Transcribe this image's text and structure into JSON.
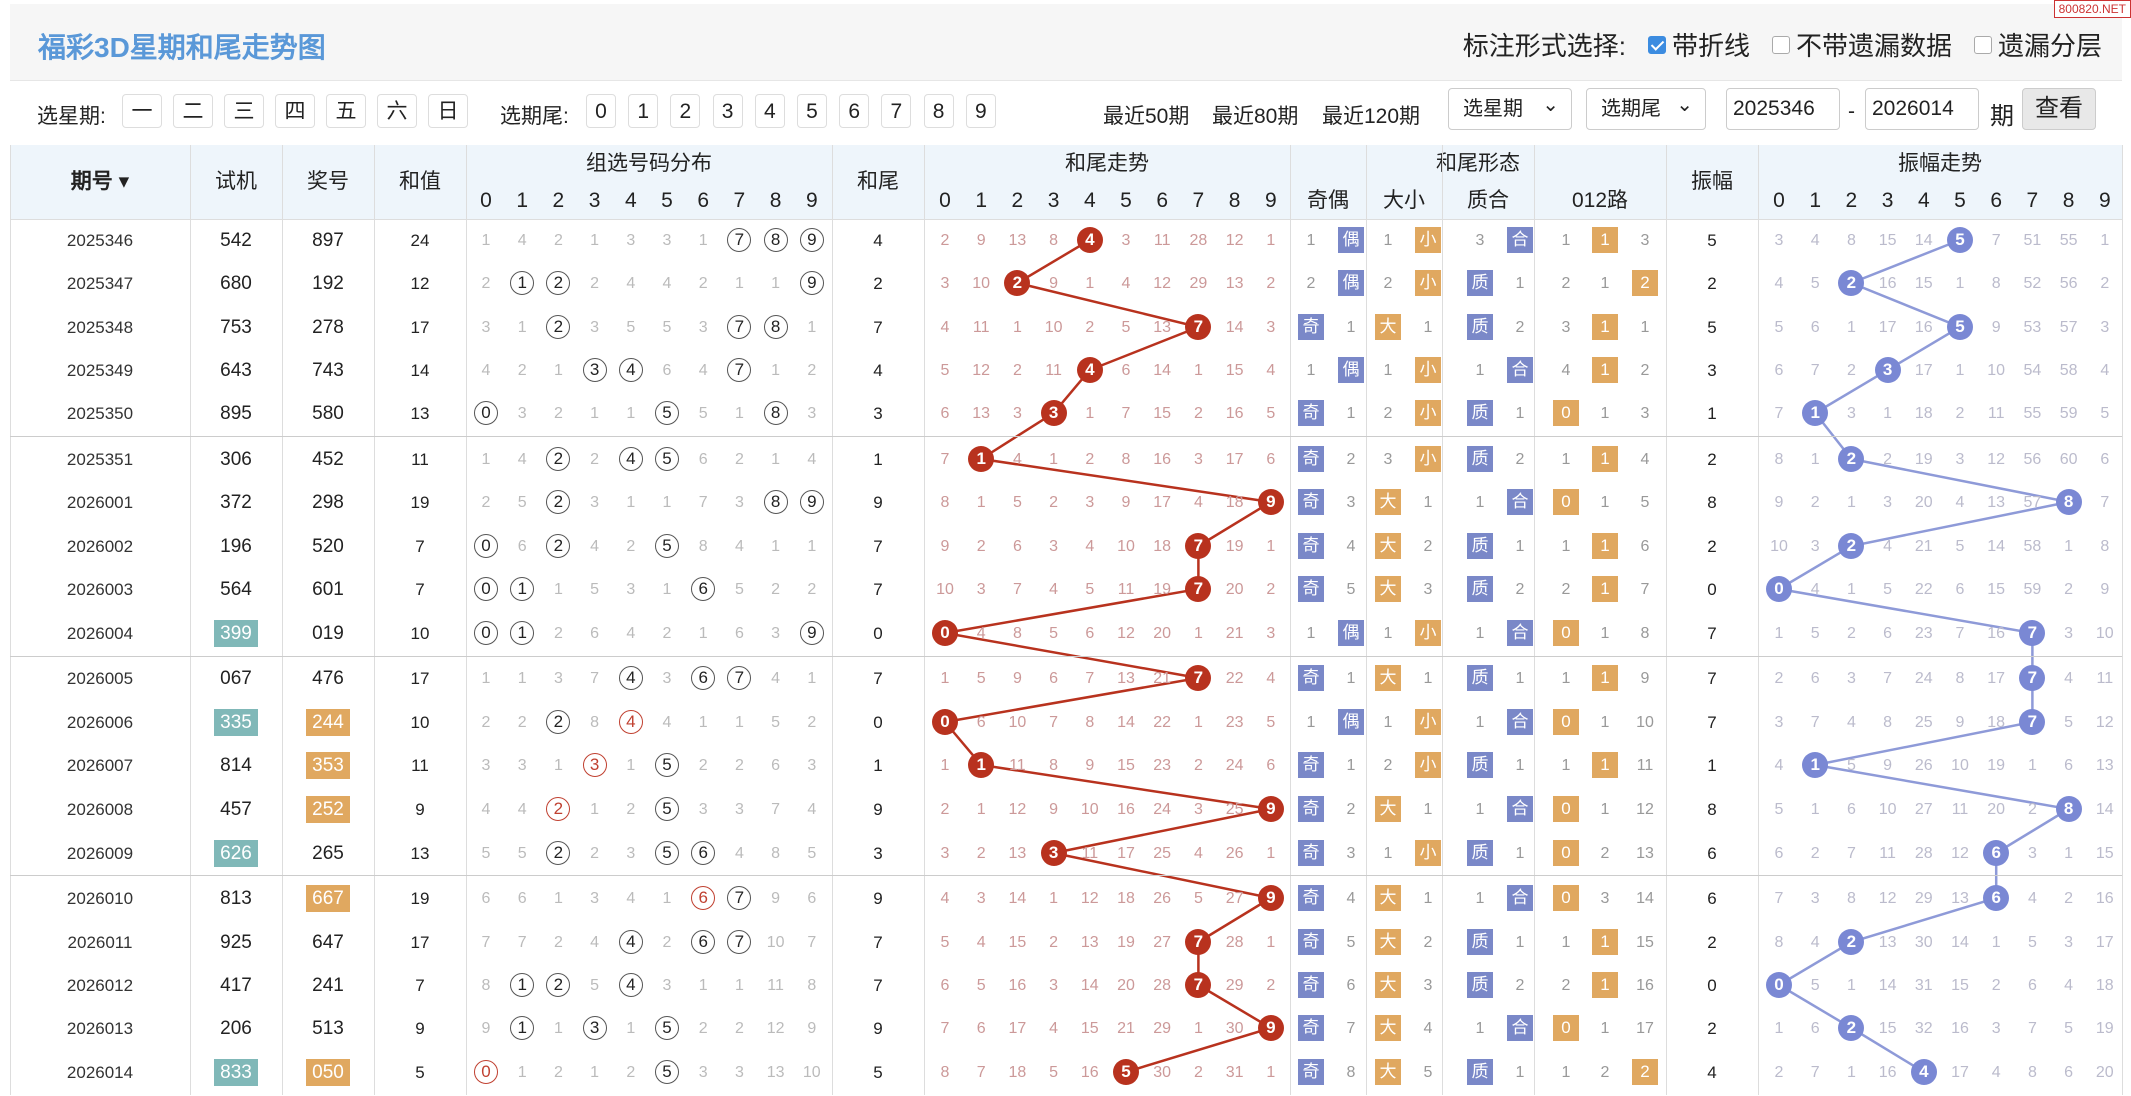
{
  "title": "福彩3D星期和尾走势图",
  "site_badge": "800820.NET",
  "options": {
    "label": "标注形式选择:",
    "items": [
      {
        "label": "带折线",
        "checked": true
      },
      {
        "label": "不带遗漏数据",
        "checked": false
      },
      {
        "label": "遗漏分层",
        "checked": false
      }
    ]
  },
  "filter": {
    "weekday_label": "选星期:",
    "weekdays": [
      "一",
      "二",
      "三",
      "四",
      "五",
      "六",
      "日"
    ],
    "tail_label": "选期尾:",
    "tails": [
      "0",
      "1",
      "2",
      "3",
      "4",
      "5",
      "6",
      "7",
      "8",
      "9"
    ],
    "recent": [
      "最近50期",
      "最近80期",
      "最近120期"
    ],
    "weekday_select": "选星期",
    "tail_select": "选期尾",
    "from": "2025346",
    "sep": "-",
    "to": "2026014",
    "period_label": "期",
    "query": "查看"
  },
  "headers": {
    "issue": "期号",
    "trial": "试机",
    "draw": "奖号",
    "sum": "和值",
    "dist": "组选号码分布",
    "tail": "和尾",
    "trend": "和尾走势",
    "form": "和尾形态",
    "odd_even": "奇偶",
    "big_small": "大小",
    "prime": "质合",
    "route": "012路",
    "amp": "振幅",
    "amp_trend": "振幅走势",
    "digits": [
      "0",
      "1",
      "2",
      "3",
      "4",
      "5",
      "6",
      "7",
      "8",
      "9"
    ]
  },
  "colors": {
    "title": "#5a98d8",
    "red": "#b8321e",
    "blue": "#7a88d4",
    "orange": "#e0a860",
    "teal": "#80b8b8"
  },
  "rows": [
    {
      "issue": "2025346",
      "trial": "542",
      "draw": "897",
      "sum": "24",
      "tail": "4",
      "amp": "5",
      "dist": [
        "1",
        "4",
        "2",
        "1",
        "3",
        "3",
        "1",
        "7",
        "8",
        "9"
      ],
      "trend": [
        "2",
        "9",
        "13",
        "8",
        "4",
        "3",
        "11",
        "28",
        "12",
        "1"
      ],
      "form": [
        "1",
        "偶",
        "1",
        "小",
        "3",
        "合",
        "1",
        "1",
        "3"
      ],
      "ampt": [
        "3",
        "4",
        "8",
        "15",
        "14",
        "5",
        "7",
        "51",
        "55",
        "1"
      ]
    },
    {
      "issue": "2025347",
      "trial": "680",
      "draw": "192",
      "sum": "12",
      "tail": "2",
      "amp": "2",
      "dist": [
        "2",
        "1",
        "2",
        "2",
        "4",
        "4",
        "2",
        "1",
        "1",
        "9"
      ],
      "trend": [
        "3",
        "10",
        "2",
        "9",
        "1",
        "4",
        "12",
        "29",
        "13",
        "2"
      ],
      "form": [
        "2",
        "偶",
        "2",
        "小",
        "质",
        "1",
        "2",
        "1",
        "2"
      ],
      "ampt": [
        "4",
        "5",
        "2",
        "16",
        "15",
        "1",
        "8",
        "52",
        "56",
        "2"
      ]
    },
    {
      "issue": "2025348",
      "trial": "753",
      "draw": "278",
      "sum": "17",
      "tail": "7",
      "amp": "5",
      "dist": [
        "3",
        "1",
        "2",
        "3",
        "5",
        "5",
        "3",
        "7",
        "8",
        "1"
      ],
      "trend": [
        "4",
        "11",
        "1",
        "10",
        "2",
        "5",
        "13",
        "7",
        "14",
        "3"
      ],
      "form": [
        "奇",
        "1",
        "大",
        "1",
        "质",
        "2",
        "3",
        "1",
        "1"
      ],
      "ampt": [
        "5",
        "6",
        "1",
        "17",
        "16",
        "5",
        "9",
        "53",
        "57",
        "3"
      ]
    },
    {
      "issue": "2025349",
      "trial": "643",
      "draw": "743",
      "sum": "14",
      "tail": "4",
      "amp": "3",
      "dist": [
        "4",
        "2",
        "1",
        "3",
        "4",
        "6",
        "4",
        "7",
        "1",
        "2"
      ],
      "trend": [
        "5",
        "12",
        "2",
        "11",
        "4",
        "6",
        "14",
        "1",
        "15",
        "4"
      ],
      "form": [
        "1",
        "偶",
        "1",
        "小",
        "1",
        "合",
        "4",
        "1",
        "2"
      ],
      "ampt": [
        "6",
        "7",
        "2",
        "3",
        "17",
        "1",
        "10",
        "54",
        "58",
        "4"
      ]
    },
    {
      "issue": "2025350",
      "trial": "895",
      "draw": "580",
      "sum": "13",
      "tail": "3",
      "amp": "1",
      "dist": [
        "0",
        "3",
        "2",
        "1",
        "1",
        "5",
        "5",
        "1",
        "8",
        "3"
      ],
      "trend": [
        "6",
        "13",
        "3",
        "3",
        "1",
        "7",
        "15",
        "2",
        "16",
        "5"
      ],
      "form": [
        "奇",
        "1",
        "2",
        "小",
        "质",
        "1",
        "0",
        "1",
        "3"
      ],
      "ampt": [
        "7",
        "1",
        "3",
        "1",
        "18",
        "2",
        "11",
        "55",
        "59",
        "5"
      ]
    },
    {
      "issue": "2025351",
      "trial": "306",
      "draw": "452",
      "sum": "11",
      "tail": "1",
      "amp": "2",
      "dist": [
        "1",
        "4",
        "2",
        "2",
        "4",
        "5",
        "6",
        "2",
        "1",
        "4"
      ],
      "trend": [
        "7",
        "1",
        "4",
        "1",
        "2",
        "8",
        "16",
        "3",
        "17",
        "6"
      ],
      "form": [
        "奇",
        "2",
        "3",
        "小",
        "质",
        "2",
        "1",
        "1",
        "4"
      ],
      "ampt": [
        "8",
        "1",
        "2",
        "2",
        "19",
        "3",
        "12",
        "56",
        "60",
        "6"
      ]
    },
    {
      "issue": "2026001",
      "trial": "372",
      "draw": "298",
      "sum": "19",
      "tail": "9",
      "amp": "8",
      "dist": [
        "2",
        "5",
        "2",
        "3",
        "1",
        "1",
        "7",
        "3",
        "8",
        "9"
      ],
      "trend": [
        "8",
        "1",
        "5",
        "2",
        "3",
        "9",
        "17",
        "4",
        "18",
        "9"
      ],
      "form": [
        "奇",
        "3",
        "大",
        "1",
        "1",
        "合",
        "0",
        "1",
        "5"
      ],
      "ampt": [
        "9",
        "2",
        "1",
        "3",
        "20",
        "4",
        "13",
        "57",
        "8",
        "7"
      ]
    },
    {
      "issue": "2026002",
      "trial": "196",
      "draw": "520",
      "sum": "7",
      "tail": "7",
      "amp": "2",
      "dist": [
        "0",
        "6",
        "2",
        "4",
        "2",
        "5",
        "8",
        "4",
        "1",
        "1"
      ],
      "trend": [
        "9",
        "2",
        "6",
        "3",
        "4",
        "10",
        "18",
        "7",
        "19",
        "1"
      ],
      "form": [
        "奇",
        "4",
        "大",
        "2",
        "质",
        "1",
        "1",
        "1",
        "6"
      ],
      "ampt": [
        "10",
        "3",
        "2",
        "4",
        "21",
        "5",
        "14",
        "58",
        "1",
        "8"
      ]
    },
    {
      "issue": "2026003",
      "trial": "564",
      "draw": "601",
      "sum": "7",
      "tail": "7",
      "amp": "0",
      "dist": [
        "0",
        "1",
        "1",
        "5",
        "3",
        "1",
        "6",
        "5",
        "2",
        "2"
      ],
      "trend": [
        "10",
        "3",
        "7",
        "4",
        "5",
        "11",
        "19",
        "7",
        "20",
        "2"
      ],
      "form": [
        "奇",
        "5",
        "大",
        "3",
        "质",
        "2",
        "2",
        "1",
        "7"
      ],
      "ampt": [
        "0",
        "4",
        "1",
        "5",
        "22",
        "6",
        "15",
        "59",
        "2",
        "9"
      ]
    },
    {
      "issue": "2026004",
      "trial": "399",
      "draw": "019",
      "sum": "10",
      "tail": "0",
      "amp": "7",
      "dist": [
        "0",
        "1",
        "2",
        "6",
        "4",
        "2",
        "1",
        "6",
        "3",
        "9"
      ],
      "trend": [
        "0",
        "4",
        "8",
        "5",
        "6",
        "12",
        "20",
        "1",
        "21",
        "3"
      ],
      "form": [
        "1",
        "偶",
        "1",
        "小",
        "1",
        "合",
        "0",
        "1",
        "8"
      ],
      "ampt": [
        "1",
        "5",
        "2",
        "6",
        "23",
        "7",
        "16",
        "7",
        "3",
        "10"
      ]
    },
    {
      "issue": "2026005",
      "trial": "067",
      "draw": "476",
      "sum": "17",
      "tail": "7",
      "amp": "7",
      "dist": [
        "1",
        "1",
        "3",
        "7",
        "4",
        "3",
        "6",
        "7",
        "4",
        "1"
      ],
      "trend": [
        "1",
        "5",
        "9",
        "6",
        "7",
        "13",
        "21",
        "7",
        "22",
        "4"
      ],
      "form": [
        "奇",
        "1",
        "大",
        "1",
        "质",
        "1",
        "1",
        "1",
        "9"
      ],
      "ampt": [
        "2",
        "6",
        "3",
        "7",
        "24",
        "8",
        "17",
        "7",
        "4",
        "11"
      ]
    },
    {
      "issue": "2026006",
      "trial": "335",
      "draw": "244",
      "sum": "10",
      "tail": "0",
      "amp": "7",
      "dist": [
        "2",
        "2",
        "2",
        "8",
        "4",
        "4",
        "1",
        "1",
        "5",
        "2"
      ],
      "trend": [
        "0",
        "6",
        "10",
        "7",
        "8",
        "14",
        "22",
        "1",
        "23",
        "5"
      ],
      "form": [
        "1",
        "偶",
        "1",
        "小",
        "1",
        "合",
        "0",
        "1",
        "10"
      ],
      "ampt": [
        "3",
        "7",
        "4",
        "8",
        "25",
        "9",
        "18",
        "7",
        "5",
        "12"
      ]
    },
    {
      "issue": "2026007",
      "trial": "814",
      "draw": "353",
      "sum": "11",
      "tail": "1",
      "amp": "1",
      "dist": [
        "3",
        "3",
        "1",
        "3",
        "1",
        "5",
        "2",
        "2",
        "6",
        "3"
      ],
      "trend": [
        "1",
        "1",
        "11",
        "8",
        "9",
        "15",
        "23",
        "2",
        "24",
        "6"
      ],
      "form": [
        "奇",
        "1",
        "2",
        "小",
        "质",
        "1",
        "1",
        "1",
        "11"
      ],
      "ampt": [
        "4",
        "1",
        "5",
        "9",
        "26",
        "10",
        "19",
        "1",
        "6",
        "13"
      ]
    },
    {
      "issue": "2026008",
      "trial": "457",
      "draw": "252",
      "sum": "9",
      "tail": "9",
      "amp": "8",
      "dist": [
        "4",
        "4",
        "2",
        "1",
        "2",
        "5",
        "3",
        "3",
        "7",
        "4"
      ],
      "trend": [
        "2",
        "1",
        "12",
        "9",
        "10",
        "16",
        "24",
        "3",
        "25",
        "9"
      ],
      "form": [
        "奇",
        "2",
        "大",
        "1",
        "1",
        "合",
        "0",
        "1",
        "12"
      ],
      "ampt": [
        "5",
        "1",
        "6",
        "10",
        "27",
        "11",
        "20",
        "2",
        "8",
        "14"
      ]
    },
    {
      "issue": "2026009",
      "trial": "626",
      "draw": "265",
      "sum": "13",
      "tail": "3",
      "amp": "6",
      "dist": [
        "5",
        "5",
        "2",
        "2",
        "3",
        "5",
        "6",
        "4",
        "8",
        "5"
      ],
      "trend": [
        "3",
        "2",
        "13",
        "3",
        "11",
        "17",
        "25",
        "4",
        "26",
        "1"
      ],
      "form": [
        "奇",
        "3",
        "1",
        "小",
        "质",
        "1",
        "0",
        "2",
        "13"
      ],
      "ampt": [
        "6",
        "2",
        "7",
        "11",
        "28",
        "12",
        "6",
        "3",
        "1",
        "15"
      ]
    },
    {
      "issue": "2026010",
      "trial": "813",
      "draw": "667",
      "sum": "19",
      "tail": "9",
      "amp": "6",
      "dist": [
        "6",
        "6",
        "1",
        "3",
        "4",
        "1",
        "6",
        "7",
        "9",
        "6"
      ],
      "trend": [
        "4",
        "3",
        "14",
        "1",
        "12",
        "18",
        "26",
        "5",
        "27",
        "9"
      ],
      "form": [
        "奇",
        "4",
        "大",
        "1",
        "1",
        "合",
        "0",
        "3",
        "14"
      ],
      "ampt": [
        "7",
        "3",
        "8",
        "12",
        "29",
        "13",
        "6",
        "4",
        "2",
        "16"
      ]
    },
    {
      "issue": "2026011",
      "trial": "925",
      "draw": "647",
      "sum": "17",
      "tail": "7",
      "amp": "2",
      "dist": [
        "7",
        "7",
        "2",
        "4",
        "4",
        "2",
        "6",
        "7",
        "10",
        "7"
      ],
      "trend": [
        "5",
        "4",
        "15",
        "2",
        "13",
        "19",
        "27",
        "7",
        "28",
        "1"
      ],
      "form": [
        "奇",
        "5",
        "大",
        "2",
        "质",
        "1",
        "1",
        "1",
        "15"
      ],
      "ampt": [
        "8",
        "4",
        "2",
        "13",
        "30",
        "14",
        "1",
        "5",
        "3",
        "17"
      ]
    },
    {
      "issue": "2026012",
      "trial": "417",
      "draw": "241",
      "sum": "7",
      "tail": "7",
      "amp": "0",
      "dist": [
        "8",
        "1",
        "2",
        "5",
        "4",
        "3",
        "1",
        "1",
        "11",
        "8"
      ],
      "trend": [
        "6",
        "5",
        "16",
        "3",
        "14",
        "20",
        "28",
        "7",
        "29",
        "2"
      ],
      "form": [
        "奇",
        "6",
        "大",
        "3",
        "质",
        "2",
        "2",
        "1",
        "16"
      ],
      "ampt": [
        "0",
        "5",
        "1",
        "14",
        "31",
        "15",
        "2",
        "6",
        "4",
        "18"
      ]
    },
    {
      "issue": "2026013",
      "trial": "206",
      "draw": "513",
      "sum": "9",
      "tail": "9",
      "amp": "2",
      "dist": [
        "9",
        "1",
        "1",
        "3",
        "1",
        "5",
        "2",
        "2",
        "12",
        "9"
      ],
      "trend": [
        "7",
        "6",
        "17",
        "4",
        "15",
        "21",
        "29",
        "1",
        "30",
        "9"
      ],
      "form": [
        "奇",
        "7",
        "大",
        "4",
        "1",
        "合",
        "0",
        "1",
        "17"
      ],
      "ampt": [
        "1",
        "6",
        "2",
        "15",
        "32",
        "16",
        "3",
        "7",
        "5",
        "19"
      ]
    },
    {
      "issue": "2026014",
      "trial": "833",
      "draw": "050",
      "sum": "5",
      "tail": "5",
      "amp": "4",
      "dist": [
        "0",
        "1",
        "2",
        "1",
        "2",
        "5",
        "3",
        "3",
        "13",
        "10"
      ],
      "trend": [
        "8",
        "7",
        "18",
        "5",
        "16",
        "5",
        "30",
        "2",
        "31",
        "1"
      ],
      "form": [
        "奇",
        "8",
        "大",
        "5",
        "质",
        "1",
        "1",
        "2",
        "2"
      ],
      "ampt": [
        "2",
        "7",
        "1",
        "16",
        "4",
        "17",
        "4",
        "8",
        "6",
        "20"
      ]
    }
  ]
}
